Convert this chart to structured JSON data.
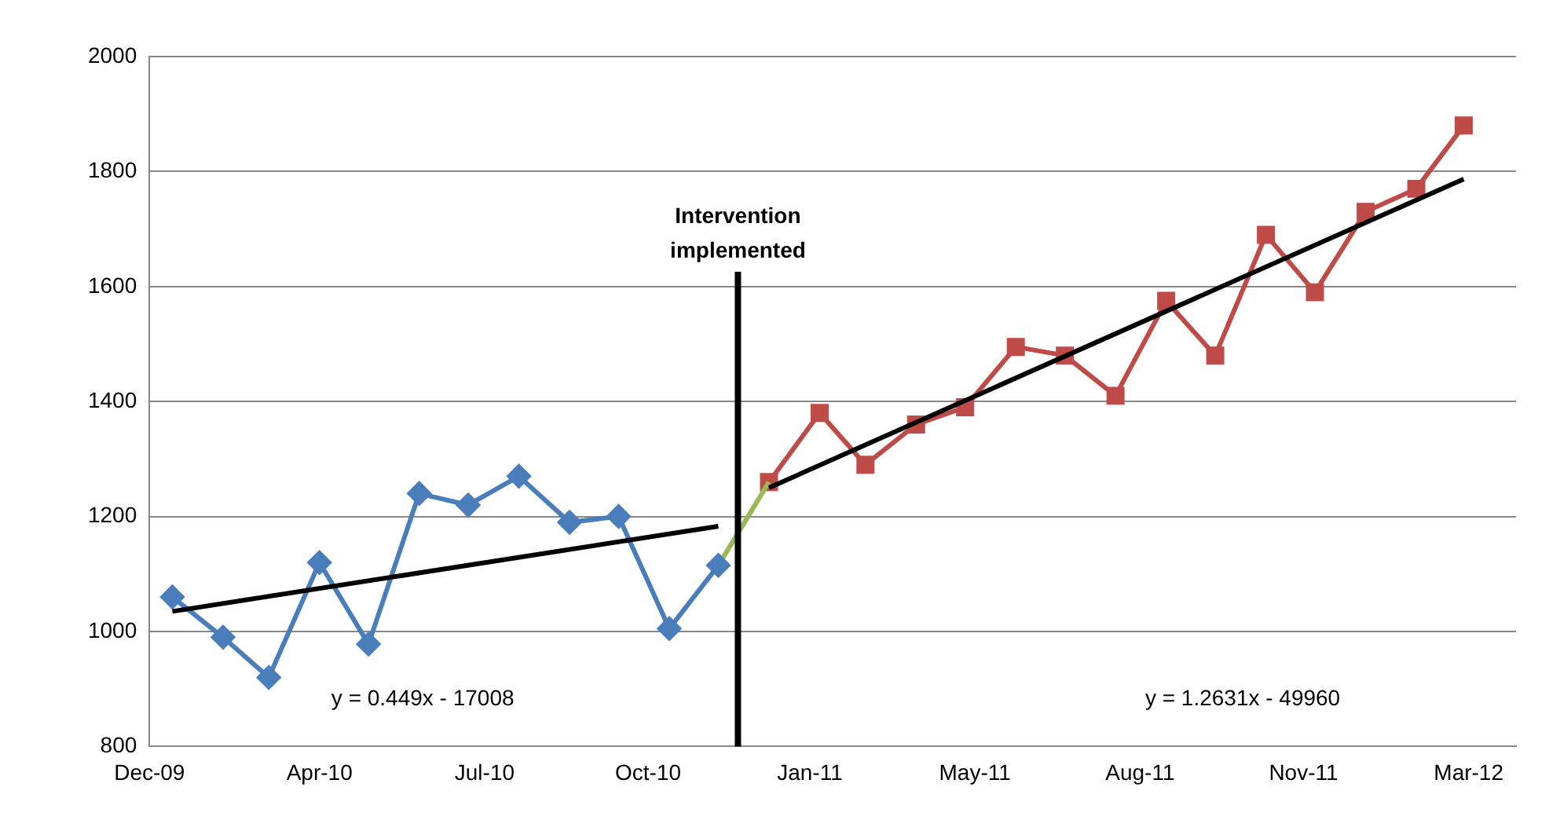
{
  "chart_data": {
    "type": "line",
    "x": [
      "2010-01-01",
      "2010-02-01",
      "2010-03-01",
      "2010-04-01",
      "2010-05-01",
      "2010-06-01",
      "2010-07-01",
      "2010-08-01",
      "2010-09-01",
      "2010-10-01",
      "2010-11-01",
      "2010-12-01"
    ],
    "series": [
      {
        "color": "#4a7ebb",
        "marker": "diamond",
        "values": [
          1060,
          990,
          920,
          1120,
          978,
          1240,
          1220,
          1270,
          1190,
          1200,
          1005,
          1115
        ]
      },
      {
        "color": "#98b954",
        "marker": "none",
        "x": [
          "2010-12-01",
          "2011-01-01"
        ],
        "values": [
          1115,
          1260
        ]
      },
      {
        "color": "#be4b48",
        "marker": "square",
        "x": [
          "2011-01-01",
          "2011-02-01",
          "2011-03-01",
          "2011-04-01",
          "2011-05-01",
          "2011-06-01",
          "2011-07-01",
          "2011-08-01",
          "2011-09-01",
          "2011-10-01",
          "2011-11-01",
          "2011-12-01",
          "2012-01-01",
          "2012-02-01",
          "2012-03-01"
        ],
        "values": [
          1260,
          1380,
          1290,
          1360,
          1390,
          1495,
          1480,
          1410,
          1575,
          1480,
          1690,
          1590,
          1730,
          1770,
          1880
        ]
      },
      {
        "type": "line",
        "color": "#000000",
        "marker": "none",
        "x": [
          "2010-01-01",
          "2010-12-01"
        ],
        "values": [
          1035,
          1183
        ]
      },
      {
        "type": "line",
        "color": "#000000",
        "marker": "none",
        "x": [
          "2011-01-01",
          "2012-03-01"
        ],
        "values": [
          1250,
          1787
        ]
      }
    ],
    "xlim": [
      "2009-12-18",
      "2012-04-02"
    ],
    "xticks": [
      {
        "value": "2009-12-18",
        "label": "Dec-09"
      },
      {
        "value": "2010-04-01",
        "label": "Apr-10"
      },
      {
        "value": "2010-07-11",
        "label": "Jul-10"
      },
      {
        "value": "2010-10-19",
        "label": "Oct-10"
      },
      {
        "value": "2011-01-26",
        "label": "Jan-11"
      },
      {
        "value": "2011-05-07",
        "label": "May-11"
      },
      {
        "value": "2011-08-16",
        "label": "Aug-11"
      },
      {
        "value": "2011-11-24",
        "label": "Nov-11"
      },
      {
        "value": "2012-03-04",
        "label": "Mar-12"
      }
    ],
    "ylim": [
      800,
      2000
    ],
    "yticks": [
      800,
      1000,
      1200,
      1400,
      1600,
      1800,
      2000
    ],
    "grid": "y",
    "legend": false,
    "ref_lines": [
      {
        "axis": "x",
        "value": "2010-12-13",
        "label": "Intervention implemented",
        "color": "#000000"
      }
    ],
    "annotations": [
      "y = 0.449x - 17008",
      "y = 1.2631x - 49960"
    ]
  }
}
